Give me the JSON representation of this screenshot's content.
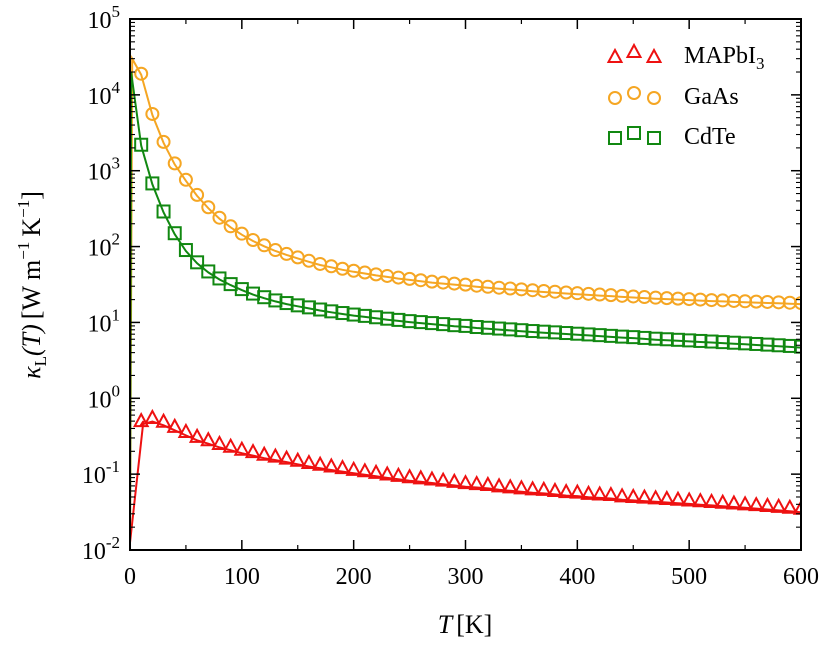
{
  "chart_data": {
    "type": "line",
    "title": "",
    "xlabel": {
      "symbol": "T",
      "unit": "[K]"
    },
    "ylabel": {
      "symbol": "κ",
      "subscript": "L",
      "arg": "(T)",
      "unit": "[W m",
      "exp1": "−1",
      "unit2": "K",
      "exp2": "−1",
      "close": "]"
    },
    "xlim": [
      0,
      600
    ],
    "ylim_log10": [
      -2,
      5
    ],
    "y_scale": "log",
    "grid": false,
    "legend_position": "top-right",
    "x_ticks": [
      "0",
      "100",
      "200",
      "300",
      "400",
      "500",
      "600"
    ],
    "y_ticks": [
      {
        "base": "10",
        "exp": "-2"
      },
      {
        "base": "10",
        "exp": "-1"
      },
      {
        "base": "10",
        "exp": "0"
      },
      {
        "base": "10",
        "exp": "1"
      },
      {
        "base": "10",
        "exp": "2"
      },
      {
        "base": "10",
        "exp": "3"
      },
      {
        "base": "10",
        "exp": "4"
      },
      {
        "base": "10",
        "exp": "5"
      }
    ],
    "series": [
      {
        "name": "MAPbI",
        "name_subscript": "3",
        "color": "#ee1111",
        "marker": "triangle",
        "line_peak": {
          "x": 12,
          "y": 0.5
        },
        "line_end": {
          "x": 600,
          "y": 0.033
        },
        "points": [
          [
            10,
            0.5
          ],
          [
            20,
            0.55
          ],
          [
            30,
            0.49
          ],
          [
            40,
            0.42
          ],
          [
            50,
            0.36
          ],
          [
            60,
            0.31
          ],
          [
            70,
            0.28
          ],
          [
            80,
            0.25
          ],
          [
            90,
            0.23
          ],
          [
            100,
            0.21
          ],
          [
            110,
            0.195
          ],
          [
            120,
            0.18
          ],
          [
            130,
            0.17
          ],
          [
            140,
            0.16
          ],
          [
            150,
            0.15
          ],
          [
            160,
            0.14
          ],
          [
            170,
            0.133
          ],
          [
            180,
            0.126
          ],
          [
            190,
            0.12
          ],
          [
            200,
            0.114
          ],
          [
            210,
            0.109
          ],
          [
            220,
            0.104
          ],
          [
            230,
            0.099
          ],
          [
            240,
            0.095
          ],
          [
            250,
            0.091
          ],
          [
            260,
            0.088
          ],
          [
            270,
            0.085
          ],
          [
            280,
            0.082
          ],
          [
            290,
            0.079
          ],
          [
            300,
            0.076
          ],
          [
            310,
            0.074
          ],
          [
            320,
            0.072
          ],
          [
            330,
            0.069
          ],
          [
            340,
            0.067
          ],
          [
            350,
            0.065
          ],
          [
            360,
            0.063
          ],
          [
            370,
            0.062
          ],
          [
            380,
            0.06
          ],
          [
            390,
            0.058
          ],
          [
            400,
            0.057
          ],
          [
            410,
            0.055
          ],
          [
            420,
            0.054
          ],
          [
            430,
            0.053
          ],
          [
            440,
            0.051
          ],
          [
            450,
            0.05
          ],
          [
            460,
            0.049
          ],
          [
            470,
            0.048
          ],
          [
            480,
            0.047
          ],
          [
            490,
            0.046
          ],
          [
            500,
            0.045
          ],
          [
            510,
            0.044
          ],
          [
            520,
            0.043
          ],
          [
            530,
            0.042
          ],
          [
            540,
            0.041
          ],
          [
            550,
            0.04
          ],
          [
            560,
            0.039
          ],
          [
            570,
            0.038
          ],
          [
            580,
            0.037
          ],
          [
            590,
            0.036
          ],
          [
            600,
            0.035
          ]
        ]
      },
      {
        "name": "GaAs",
        "color": "#f5a623",
        "marker": "circle",
        "line_peak": {
          "x": 2,
          "y": 30000
        },
        "line_end": {
          "x": 600,
          "y": 18
        },
        "points": [
          [
            10,
            19000
          ],
          [
            20,
            5600
          ],
          [
            30,
            2400
          ],
          [
            40,
            1250
          ],
          [
            50,
            760
          ],
          [
            60,
            480
          ],
          [
            70,
            330
          ],
          [
            80,
            240
          ],
          [
            90,
            185
          ],
          [
            100,
            148
          ],
          [
            110,
            122
          ],
          [
            120,
            104
          ],
          [
            130,
            90
          ],
          [
            140,
            80
          ],
          [
            150,
            72
          ],
          [
            160,
            65
          ],
          [
            170,
            59
          ],
          [
            180,
            55
          ],
          [
            190,
            51
          ],
          [
            200,
            48
          ],
          [
            210,
            45.5
          ],
          [
            220,
            43
          ],
          [
            230,
            41
          ],
          [
            240,
            39
          ],
          [
            250,
            37.5
          ],
          [
            260,
            36
          ],
          [
            270,
            34.5
          ],
          [
            280,
            33.5
          ],
          [
            290,
            32.5
          ],
          [
            300,
            31.5
          ],
          [
            310,
            30.5
          ],
          [
            320,
            29.5
          ],
          [
            330,
            28.7
          ],
          [
            340,
            28
          ],
          [
            350,
            27.3
          ],
          [
            360,
            26.6
          ],
          [
            370,
            26
          ],
          [
            380,
            25.4
          ],
          [
            390,
            24.8
          ],
          [
            400,
            24.3
          ],
          [
            410,
            23.8
          ],
          [
            420,
            23.3
          ],
          [
            430,
            22.9
          ],
          [
            440,
            22.4
          ],
          [
            450,
            22
          ],
          [
            460,
            21.6
          ],
          [
            470,
            21.2
          ],
          [
            480,
            20.9
          ],
          [
            490,
            20.6
          ],
          [
            500,
            20.3
          ],
          [
            510,
            20
          ],
          [
            520,
            19.7
          ],
          [
            530,
            19.5
          ],
          [
            540,
            19.2
          ],
          [
            550,
            19
          ],
          [
            560,
            18.8
          ],
          [
            570,
            18.6
          ],
          [
            580,
            18.4
          ],
          [
            590,
            18.2
          ],
          [
            600,
            18
          ]
        ]
      },
      {
        "name": "CdTe",
        "color": "#118811",
        "marker": "square",
        "line_peak": {
          "x": 1,
          "y": 20000
        },
        "line_end": {
          "x": 600,
          "y": 4.6
        },
        "points": [
          [
            10,
            2200
          ],
          [
            20,
            680
          ],
          [
            30,
            290
          ],
          [
            40,
            150
          ],
          [
            50,
            90
          ],
          [
            60,
            62
          ],
          [
            70,
            47
          ],
          [
            80,
            38
          ],
          [
            90,
            32
          ],
          [
            100,
            27.5
          ],
          [
            110,
            24
          ],
          [
            120,
            21.5
          ],
          [
            130,
            19.5
          ],
          [
            140,
            18
          ],
          [
            150,
            16.8
          ],
          [
            160,
            15.8
          ],
          [
            170,
            14.8
          ],
          [
            180,
            14
          ],
          [
            190,
            13.3
          ],
          [
            200,
            12.7
          ],
          [
            210,
            12.2
          ],
          [
            220,
            11.7
          ],
          [
            230,
            11.2
          ],
          [
            240,
            10.8
          ],
          [
            250,
            10.4
          ],
          [
            260,
            10.1
          ],
          [
            270,
            9.8
          ],
          [
            280,
            9.5
          ],
          [
            290,
            9.2
          ],
          [
            300,
            9
          ],
          [
            310,
            8.7
          ],
          [
            320,
            8.5
          ],
          [
            330,
            8.3
          ],
          [
            340,
            8.1
          ],
          [
            350,
            7.9
          ],
          [
            360,
            7.7
          ],
          [
            370,
            7.55
          ],
          [
            380,
            7.4
          ],
          [
            390,
            7.25
          ],
          [
            400,
            7.1
          ],
          [
            410,
            6.95
          ],
          [
            420,
            6.8
          ],
          [
            430,
            6.65
          ],
          [
            440,
            6.5
          ],
          [
            450,
            6.4
          ],
          [
            460,
            6.25
          ],
          [
            470,
            6.1
          ],
          [
            480,
            6
          ],
          [
            490,
            5.9
          ],
          [
            500,
            5.8
          ],
          [
            510,
            5.7
          ],
          [
            520,
            5.6
          ],
          [
            530,
            5.5
          ],
          [
            540,
            5.4
          ],
          [
            550,
            5.3
          ],
          [
            560,
            5.2
          ],
          [
            570,
            5.1
          ],
          [
            580,
            5
          ],
          [
            590,
            4.9
          ],
          [
            600,
            4.8
          ]
        ]
      }
    ]
  }
}
